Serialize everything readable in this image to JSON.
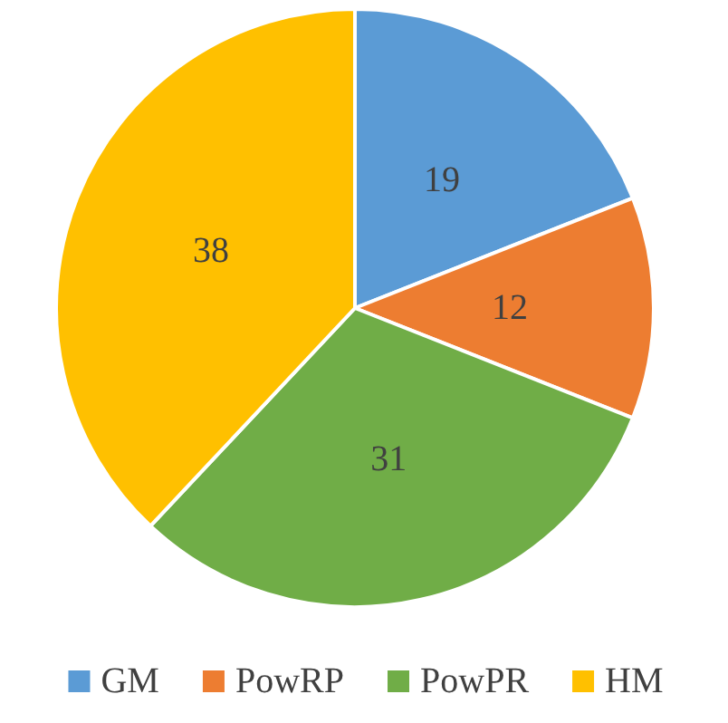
{
  "chart_data": {
    "type": "pie",
    "categories": [
      "GM",
      "PowRP",
      "PowPR",
      "HM"
    ],
    "values": [
      19,
      12,
      31,
      38
    ],
    "colors": [
      "#5b9bd5",
      "#ed7d31",
      "#70ad47",
      "#ffc000"
    ],
    "data_labels": true,
    "legend": "bottom"
  }
}
